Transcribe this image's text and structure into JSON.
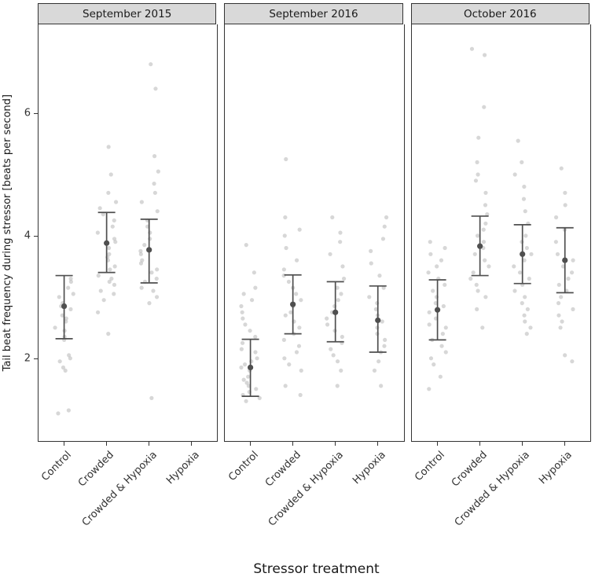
{
  "chart_data": {
    "type": "scatter",
    "title": "",
    "xlabel": "Stressor treatment",
    "ylabel": "Tail beat frequency during stressor [beats per second]",
    "ylim": [
      0.65,
      7.45
    ],
    "yticks": [
      2,
      4,
      6
    ],
    "categories": [
      "Control",
      "Crowded",
      "Crowded & Hypoxia",
      "Hypoxia"
    ],
    "legend": "none",
    "grid": false,
    "style": {
      "point_color": "#bdbdbd",
      "point_opacity": 0.6,
      "summary_color": "#4f4f4f",
      "strip_bg": "#d9d9d9",
      "border_color": "#333333"
    },
    "facets": [
      {
        "label": "September 2015",
        "groups": [
          {
            "category": "Control",
            "mean": 2.85,
            "ci_low": 2.32,
            "ci_high": 3.35,
            "points": [
              1.1,
              1.15,
              1.8,
              1.85,
              1.95,
              2.0,
              2.05,
              2.3,
              2.35,
              2.45,
              2.5,
              2.6,
              2.65,
              2.7,
              2.8,
              2.85,
              2.9,
              3.0,
              3.05,
              3.15,
              3.25,
              3.3
            ]
          },
          {
            "category": "Crowded",
            "mean": 3.88,
            "ci_low": 3.4,
            "ci_high": 4.38,
            "points": [
              2.4,
              2.75,
              2.95,
              3.05,
              3.1,
              3.2,
              3.25,
              3.3,
              3.35,
              3.45,
              3.5,
              3.6,
              3.65,
              3.7,
              3.8,
              3.9,
              3.95,
              4.05,
              4.15,
              4.25,
              4.35,
              4.45,
              4.55,
              4.7,
              5.0,
              5.45
            ]
          },
          {
            "category": "Crowded & Hypoxia",
            "mean": 3.77,
            "ci_low": 3.23,
            "ci_high": 4.27,
            "points": [
              1.35,
              2.9,
              3.0,
              3.1,
              3.15,
              3.25,
              3.3,
              3.4,
              3.45,
              3.55,
              3.6,
              3.7,
              3.75,
              3.85,
              3.95,
              4.05,
              4.15,
              4.25,
              4.4,
              4.55,
              4.7,
              4.85,
              5.05,
              5.3,
              6.4,
              6.8
            ]
          },
          {
            "category": "Hypoxia",
            "mean": null,
            "ci_low": null,
            "ci_high": null,
            "points": []
          }
        ]
      },
      {
        "label": "September 2016",
        "groups": [
          {
            "category": "Control",
            "mean": 1.85,
            "ci_low": 1.38,
            "ci_high": 2.31,
            "points": [
              1.3,
              1.35,
              1.4,
              1.45,
              1.5,
              1.55,
              1.6,
              1.65,
              1.7,
              1.8,
              1.85,
              1.9,
              1.95,
              2.0,
              2.1,
              2.15,
              2.25,
              2.35,
              2.45,
              2.55,
              2.65,
              2.75,
              2.85,
              2.95,
              3.05,
              3.15,
              3.4,
              3.85
            ]
          },
          {
            "category": "Crowded",
            "mean": 2.88,
            "ci_low": 2.4,
            "ci_high": 3.36,
            "points": [
              1.4,
              1.55,
              1.8,
              1.9,
              2.0,
              2.1,
              2.2,
              2.3,
              2.4,
              2.5,
              2.6,
              2.7,
              2.75,
              2.85,
              2.95,
              3.05,
              3.15,
              3.25,
              3.35,
              3.45,
              3.6,
              3.8,
              4.0,
              4.1,
              4.3,
              5.25
            ]
          },
          {
            "category": "Crowded & Hypoxia",
            "mean": 2.75,
            "ci_low": 2.27,
            "ci_high": 3.25,
            "points": [
              1.55,
              1.8,
              1.95,
              2.05,
              2.15,
              2.25,
              2.35,
              2.45,
              2.55,
              2.65,
              2.75,
              2.85,
              2.95,
              3.05,
              3.15,
              3.3,
              3.5,
              3.7,
              3.9,
              4.05,
              4.3
            ]
          },
          {
            "category": "Hypoxia",
            "mean": 2.62,
            "ci_low": 2.1,
            "ci_high": 3.18,
            "points": [
              1.55,
              1.8,
              1.95,
              2.1,
              2.2,
              2.3,
              2.4,
              2.5,
              2.6,
              2.7,
              2.8,
              2.9,
              3.0,
              3.15,
              3.35,
              3.55,
              3.75,
              3.95,
              4.15,
              4.3
            ]
          }
        ]
      },
      {
        "label": "October 2016",
        "groups": [
          {
            "category": "Control",
            "mean": 2.79,
            "ci_low": 2.3,
            "ci_high": 3.28,
            "points": [
              1.5,
              1.7,
              1.9,
              2.0,
              2.1,
              2.2,
              2.3,
              2.4,
              2.5,
              2.55,
              2.65,
              2.75,
              2.85,
              2.9,
              3.0,
              3.1,
              3.2,
              3.3,
              3.4,
              3.5,
              3.6,
              3.7,
              3.8,
              3.9
            ]
          },
          {
            "category": "Crowded",
            "mean": 3.83,
            "ci_low": 3.35,
            "ci_high": 4.32,
            "points": [
              2.5,
              2.8,
              3.0,
              3.1,
              3.2,
              3.3,
              3.4,
              3.5,
              3.6,
              3.7,
              3.8,
              3.9,
              4.0,
              4.1,
              4.2,
              4.35,
              4.5,
              4.7,
              4.9,
              5.0,
              5.2,
              5.6,
              6.1,
              6.95,
              7.05
            ]
          },
          {
            "category": "Crowded & Hypoxia",
            "mean": 3.7,
            "ci_low": 3.22,
            "ci_high": 4.18,
            "points": [
              2.4,
              2.5,
              2.6,
              2.7,
              2.8,
              2.9,
              3.0,
              3.1,
              3.2,
              3.3,
              3.4,
              3.5,
              3.6,
              3.7,
              3.8,
              3.9,
              4.0,
              4.2,
              4.4,
              4.6,
              4.8,
              5.0,
              5.2,
              5.55
            ]
          },
          {
            "category": "Hypoxia",
            "mean": 3.6,
            "ci_low": 3.07,
            "ci_high": 4.13,
            "points": [
              1.95,
              2.05,
              2.5,
              2.6,
              2.7,
              2.8,
              2.9,
              3.0,
              3.1,
              3.2,
              3.3,
              3.4,
              3.5,
              3.6,
              3.7,
              3.9,
              4.1,
              4.3,
              4.5,
              4.7,
              5.1
            ]
          }
        ]
      }
    ]
  }
}
